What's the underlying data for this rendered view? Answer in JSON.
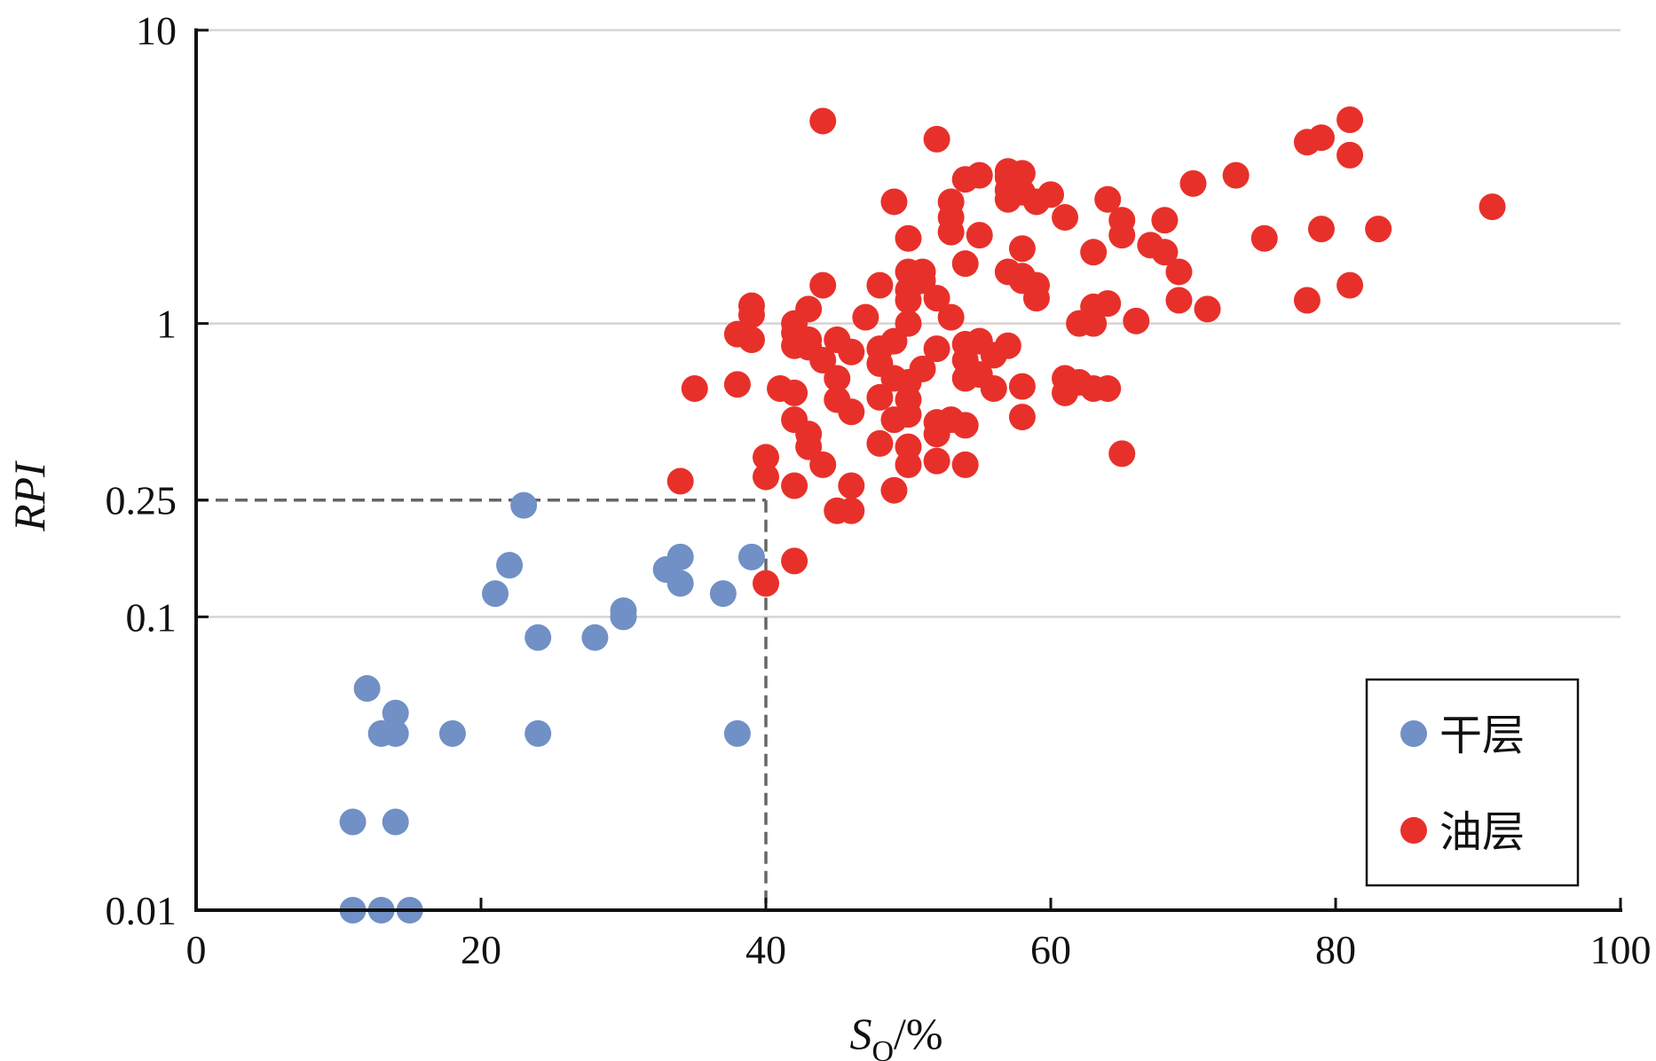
{
  "chart_data": {
    "type": "scatter",
    "xlabel": "S",
    "xlabel_sub": "O",
    "xlabel_suffix": "/%",
    "ylabel": "RPI",
    "xlim": [
      0,
      100
    ],
    "ylim": [
      0.01,
      10
    ],
    "yscale": "log",
    "x_ticks": [
      0,
      20,
      40,
      60,
      80,
      100
    ],
    "x_tick_labels": [
      "0",
      "20",
      "40",
      "60",
      "80",
      "100"
    ],
    "y_ticks": [
      0.01,
      0.1,
      0.25,
      1,
      10
    ],
    "y_tick_labels": [
      "0.01",
      "0.1",
      "0.25",
      "1",
      "10"
    ],
    "gridlines_y": [
      0.1,
      1,
      10
    ],
    "legend_position": "bottom-right",
    "colors": {
      "dry": "#7090c6",
      "oil": "#e8302a",
      "grid": "#d9d3d0",
      "cutoff": "#666666"
    },
    "cutoff": {
      "x": 40,
      "y": 0.25
    },
    "series": [
      {
        "name": "干层",
        "color": "#7090c6",
        "points": [
          [
            11,
            0.01
          ],
          [
            13,
            0.01
          ],
          [
            15,
            0.01
          ],
          [
            11,
            0.02
          ],
          [
            14,
            0.02
          ],
          [
            13,
            0.04
          ],
          [
            14,
            0.04
          ],
          [
            18,
            0.04
          ],
          [
            24,
            0.04
          ],
          [
            38,
            0.04
          ],
          [
            14,
            0.047
          ],
          [
            12,
            0.057
          ],
          [
            24,
            0.085
          ],
          [
            28,
            0.085
          ],
          [
            30,
            0.1
          ],
          [
            30,
            0.105
          ],
          [
            21,
            0.12
          ],
          [
            37,
            0.12
          ],
          [
            34,
            0.13
          ],
          [
            33,
            0.145
          ],
          [
            22,
            0.15
          ],
          [
            34,
            0.16
          ],
          [
            39,
            0.16
          ],
          [
            23,
            0.24
          ]
        ]
      },
      {
        "name": "油层",
        "color": "#e8302a",
        "points": [
          [
            40,
            0.13
          ],
          [
            42,
            0.155
          ],
          [
            45,
            0.23
          ],
          [
            46,
            0.23
          ],
          [
            34,
            0.29
          ],
          [
            40,
            0.3
          ],
          [
            42,
            0.28
          ],
          [
            46,
            0.28
          ],
          [
            49,
            0.27
          ],
          [
            40,
            0.35
          ],
          [
            44,
            0.33
          ],
          [
            50,
            0.33
          ],
          [
            52,
            0.34
          ],
          [
            54,
            0.33
          ],
          [
            65,
            0.36
          ],
          [
            43,
            0.38
          ],
          [
            48,
            0.39
          ],
          [
            50,
            0.38
          ],
          [
            43,
            0.42
          ],
          [
            52,
            0.42
          ],
          [
            54,
            0.45
          ],
          [
            42,
            0.47
          ],
          [
            49,
            0.47
          ],
          [
            52,
            0.46
          ],
          [
            53,
            0.47
          ],
          [
            50,
            0.49
          ],
          [
            46,
            0.5
          ],
          [
            58,
            0.48
          ],
          [
            45,
            0.55
          ],
          [
            48,
            0.56
          ],
          [
            50,
            0.55
          ],
          [
            35,
            0.6
          ],
          [
            41,
            0.6
          ],
          [
            42,
            0.58
          ],
          [
            56,
            0.6
          ],
          [
            58,
            0.61
          ],
          [
            61,
            0.58
          ],
          [
            62,
            0.63
          ],
          [
            63,
            0.6
          ],
          [
            64,
            0.6
          ],
          [
            38,
            0.62
          ],
          [
            45,
            0.65
          ],
          [
            49,
            0.65
          ],
          [
            50,
            0.63
          ],
          [
            54,
            0.65
          ],
          [
            55,
            0.67
          ],
          [
            61,
            0.65
          ],
          [
            51,
            0.7
          ],
          [
            48,
            0.73
          ],
          [
            44,
            0.75
          ],
          [
            54,
            0.75
          ],
          [
            56,
            0.78
          ],
          [
            46,
            0.8
          ],
          [
            48,
            0.82
          ],
          [
            52,
            0.82
          ],
          [
            43,
            0.83
          ],
          [
            42,
            0.84
          ],
          [
            54,
            0.85
          ],
          [
            57,
            0.84
          ],
          [
            49,
            0.87
          ],
          [
            39,
            0.88
          ],
          [
            43,
            0.88
          ],
          [
            45,
            0.88
          ],
          [
            55,
            0.87
          ],
          [
            38,
            0.92
          ],
          [
            42,
            0.93
          ],
          [
            62,
            1.0
          ],
          [
            63,
            1.0
          ],
          [
            66,
            1.02
          ],
          [
            50,
            1.0
          ],
          [
            42,
            1.0
          ],
          [
            53,
            1.05
          ],
          [
            39,
            1.07
          ],
          [
            43,
            1.12
          ],
          [
            47,
            1.05
          ],
          [
            71,
            1.12
          ],
          [
            39,
            1.15
          ],
          [
            50,
            1.2
          ],
          [
            52,
            1.22
          ],
          [
            59,
            1.22
          ],
          [
            63,
            1.14
          ],
          [
            64,
            1.17
          ],
          [
            69,
            1.2
          ],
          [
            78,
            1.2
          ],
          [
            44,
            1.35
          ],
          [
            48,
            1.35
          ],
          [
            50,
            1.3
          ],
          [
            81,
            1.35
          ],
          [
            51,
            1.4
          ],
          [
            58,
            1.4
          ],
          [
            59,
            1.35
          ],
          [
            50,
            1.5
          ],
          [
            51,
            1.5
          ],
          [
            57,
            1.5
          ],
          [
            58,
            1.45
          ],
          [
            69,
            1.5
          ],
          [
            54,
            1.6
          ],
          [
            63,
            1.75
          ],
          [
            58,
            1.8
          ],
          [
            68,
            1.75
          ],
          [
            67,
            1.85
          ],
          [
            50,
            1.95
          ],
          [
            55,
            2.0
          ],
          [
            65,
            2.0
          ],
          [
            75,
            1.95
          ],
          [
            53,
            2.05
          ],
          [
            79,
            2.1
          ],
          [
            83,
            2.1
          ],
          [
            53,
            2.3
          ],
          [
            61,
            2.3
          ],
          [
            65,
            2.25
          ],
          [
            68,
            2.25
          ],
          [
            49,
            2.6
          ],
          [
            53,
            2.6
          ],
          [
            57,
            2.65
          ],
          [
            59,
            2.6
          ],
          [
            64,
            2.65
          ],
          [
            91,
            2.5
          ],
          [
            57,
            2.85
          ],
          [
            58,
            2.8
          ],
          [
            60,
            2.75
          ],
          [
            54,
            3.1
          ],
          [
            55,
            3.2
          ],
          [
            57,
            3.15
          ],
          [
            58,
            3.25
          ],
          [
            70,
            3.0
          ],
          [
            73,
            3.2
          ],
          [
            57,
            3.3
          ],
          [
            81,
            3.75
          ],
          [
            78,
            4.15
          ],
          [
            79,
            4.3
          ],
          [
            52,
            4.25
          ],
          [
            44,
            4.9
          ],
          [
            81,
            4.95
          ]
        ]
      }
    ]
  }
}
